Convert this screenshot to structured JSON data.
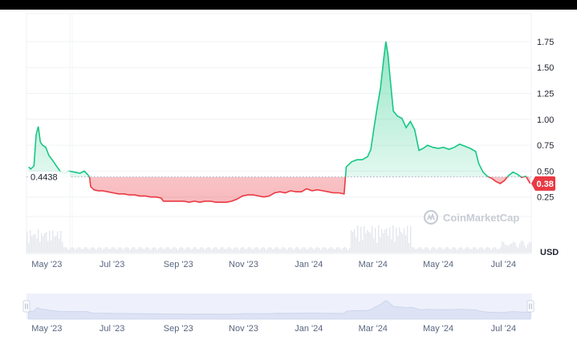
{
  "chart_data": {
    "type": "area",
    "baseline": {
      "value": 0.4438,
      "label": "0.4438"
    },
    "current_price": {
      "value": 0.38,
      "label": "0.38"
    },
    "yaxis": {
      "ticks": [
        "0.25",
        "0.50",
        "0.75",
        "1.00",
        "1.25",
        "1.50",
        "1.75"
      ],
      "range": [
        0.0,
        1.85
      ],
      "unit": "USD"
    },
    "xaxis": {
      "ticks": [
        "May '23",
        "Jul '23",
        "Sep '23",
        "Nov '23",
        "Jan '24",
        "Mar '24",
        "May '24",
        "Jul '24"
      ]
    },
    "navigator_ticks": [
      "May '23",
      "Jul '23",
      "Sep '23",
      "Nov '23",
      "Jan '24",
      "Mar '24",
      "May '24",
      "Jul '24"
    ],
    "series": [
      {
        "points": [
          [
            "2023-04-14",
            0.54
          ],
          [
            "2023-04-16",
            0.52
          ],
          [
            "2023-04-19",
            0.55
          ],
          [
            "2023-04-21",
            0.85
          ],
          [
            "2023-04-23",
            0.93
          ],
          [
            "2023-04-25",
            0.78
          ],
          [
            "2023-04-27",
            0.75
          ],
          [
            "2023-04-30",
            0.73
          ],
          [
            "2023-05-03",
            0.65
          ],
          [
            "2023-05-06",
            0.61
          ],
          [
            "2023-05-10",
            0.55
          ],
          [
            "2023-05-14",
            0.49
          ],
          [
            "2023-05-18",
            0.48
          ],
          [
            "2023-05-22",
            0.5
          ],
          [
            "2023-05-27",
            0.49
          ],
          [
            "2023-06-01",
            0.48
          ],
          [
            "2023-06-05",
            0.5
          ],
          [
            "2023-06-08",
            0.47
          ],
          [
            "2023-06-10",
            0.44
          ],
          [
            "2023-06-11",
            0.35
          ],
          [
            "2023-06-14",
            0.32
          ],
          [
            "2023-06-18",
            0.31
          ],
          [
            "2023-06-22",
            0.31
          ],
          [
            "2023-06-27",
            0.3
          ],
          [
            "2023-07-02",
            0.29
          ],
          [
            "2023-07-07",
            0.28
          ],
          [
            "2023-07-12",
            0.28
          ],
          [
            "2023-07-17",
            0.27
          ],
          [
            "2023-07-22",
            0.27
          ],
          [
            "2023-07-27",
            0.26
          ],
          [
            "2023-08-01",
            0.26
          ],
          [
            "2023-08-06",
            0.25
          ],
          [
            "2023-08-11",
            0.25
          ],
          [
            "2023-08-16",
            0.24
          ],
          [
            "2023-08-18",
            0.21
          ],
          [
            "2023-08-22",
            0.21
          ],
          [
            "2023-08-27",
            0.21
          ],
          [
            "2023-09-01",
            0.21
          ],
          [
            "2023-09-06",
            0.21
          ],
          [
            "2023-09-11",
            0.2
          ],
          [
            "2023-09-16",
            0.21
          ],
          [
            "2023-09-21",
            0.2
          ],
          [
            "2023-09-26",
            0.21
          ],
          [
            "2023-10-01",
            0.21
          ],
          [
            "2023-10-06",
            0.2
          ],
          [
            "2023-10-11",
            0.2
          ],
          [
            "2023-10-16",
            0.2
          ],
          [
            "2023-10-21",
            0.21
          ],
          [
            "2023-10-26",
            0.23
          ],
          [
            "2023-10-31",
            0.26
          ],
          [
            "2023-11-05",
            0.27
          ],
          [
            "2023-11-10",
            0.27
          ],
          [
            "2023-11-15",
            0.26
          ],
          [
            "2023-11-20",
            0.25
          ],
          [
            "2023-11-25",
            0.26
          ],
          [
            "2023-11-30",
            0.29
          ],
          [
            "2023-12-05",
            0.3
          ],
          [
            "2023-12-10",
            0.29
          ],
          [
            "2023-12-15",
            0.31
          ],
          [
            "2023-12-20",
            0.3
          ],
          [
            "2023-12-25",
            0.3
          ],
          [
            "2023-12-30",
            0.33
          ],
          [
            "2024-01-04",
            0.31
          ],
          [
            "2024-01-09",
            0.32
          ],
          [
            "2024-01-14",
            0.31
          ],
          [
            "2024-01-19",
            0.3
          ],
          [
            "2024-01-24",
            0.29
          ],
          [
            "2024-01-29",
            0.29
          ],
          [
            "2024-02-03",
            0.28
          ],
          [
            "2024-02-05",
            0.54
          ],
          [
            "2024-02-10",
            0.59
          ],
          [
            "2024-02-15",
            0.61
          ],
          [
            "2024-02-20",
            0.61
          ],
          [
            "2024-02-25",
            0.64
          ],
          [
            "2024-02-28",
            0.71
          ],
          [
            "2024-03-02",
            0.92
          ],
          [
            "2024-03-05",
            1.12
          ],
          [
            "2024-03-08",
            1.3
          ],
          [
            "2024-03-11",
            1.58
          ],
          [
            "2024-03-13",
            1.75
          ],
          [
            "2024-03-15",
            1.63
          ],
          [
            "2024-03-17",
            1.4
          ],
          [
            "2024-03-20",
            1.08
          ],
          [
            "2024-03-24",
            1.03
          ],
          [
            "2024-03-28",
            1.01
          ],
          [
            "2024-04-01",
            0.92
          ],
          [
            "2024-04-05",
            0.98
          ],
          [
            "2024-04-09",
            0.9
          ],
          [
            "2024-04-13",
            0.7
          ],
          [
            "2024-04-17",
            0.72
          ],
          [
            "2024-04-21",
            0.75
          ],
          [
            "2024-04-26",
            0.73
          ],
          [
            "2024-05-01",
            0.72
          ],
          [
            "2024-05-06",
            0.73
          ],
          [
            "2024-05-11",
            0.71
          ],
          [
            "2024-05-16",
            0.73
          ],
          [
            "2024-05-21",
            0.76
          ],
          [
            "2024-05-26",
            0.74
          ],
          [
            "2024-05-31",
            0.72
          ],
          [
            "2024-06-05",
            0.69
          ],
          [
            "2024-06-08",
            0.57
          ],
          [
            "2024-06-12",
            0.49
          ],
          [
            "2024-06-16",
            0.45
          ],
          [
            "2024-06-20",
            0.43
          ],
          [
            "2024-06-24",
            0.4
          ],
          [
            "2024-06-28",
            0.38
          ],
          [
            "2024-07-02",
            0.41
          ],
          [
            "2024-07-06",
            0.46
          ],
          [
            "2024-07-10",
            0.49
          ],
          [
            "2024-07-14",
            0.47
          ],
          [
            "2024-07-18",
            0.44
          ],
          [
            "2024-07-22",
            0.45
          ],
          [
            "2024-07-26",
            0.38
          ]
        ]
      }
    ],
    "colors": {
      "up": "#16c784",
      "down": "#ea3943",
      "navigator": "#eef1fb"
    }
  },
  "watermark": "CoinMarketCap"
}
